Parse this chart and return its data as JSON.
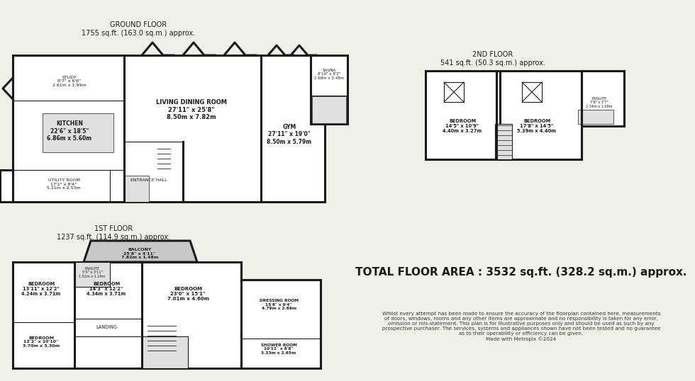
{
  "bg_color": "#f0f0eb",
  "wall_color": "#1a1a1a",
  "wall_lw": 2.2,
  "thin_lw": 0.8,
  "fill_color": "#ffffff",
  "gray_fill": "#c8c8c8",
  "light_gray": "#e0e0e0",
  "title_gf": "GROUND FLOOR\n1755 sq.ft. (163.0 sq.m.) approx.",
  "title_1f": "1ST FLOOR\n1237 sq.ft. (114.9 sq.m.) approx.",
  "title_2f": "2ND FLOOR\n541 sq.ft. (50.3 sq.m.) approx.",
  "total_area": "TOTAL FLOOR AREA : 3532 sq.ft. (328.2 sq.m.) approx.",
  "disclaimer_lines": [
    "Whilst every attempt has been made to ensure the accuracy of the floorplan contained here, measurements",
    "of doors, windows, rooms and any other items are approximate and no responsibility is taken for any error,",
    "omission or mis-statement. This plan is for illustrative purposes only and should be used as such by any",
    "prospective purchaser. The services, systems and appliances shown have not been tested and no guarantee",
    "as to their operability or efficiency can be given.",
    "Made with Metropix ©2024"
  ]
}
